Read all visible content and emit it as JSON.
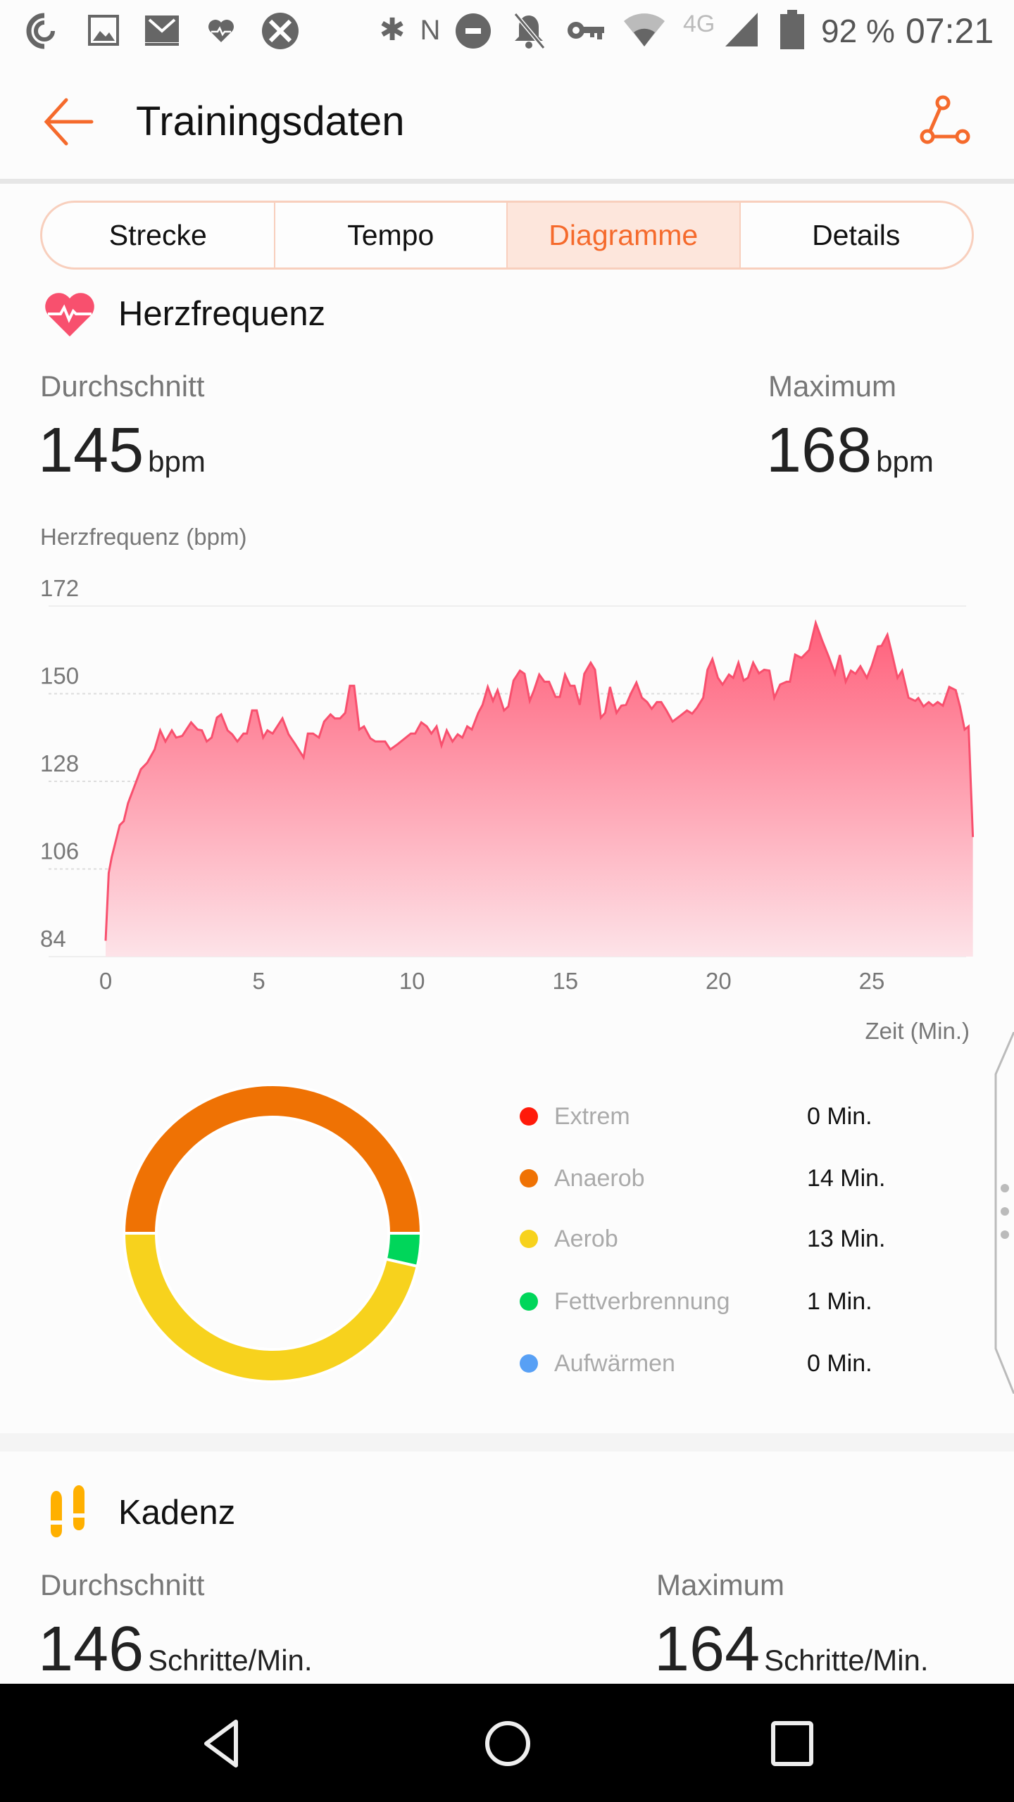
{
  "status_bar": {
    "left_icons": [
      "sync-icon",
      "image-icon",
      "mail-icon",
      "heart-rate-icon",
      "no-tools-icon"
    ],
    "right_icons": [
      "bluetooth-icon",
      "nfc-icon",
      "do-not-disturb-icon",
      "mute-bell-icon",
      "vpn-key-icon",
      "wifi-icon",
      "4g-icon",
      "signal-icon",
      "battery-icon"
    ],
    "network": "4G",
    "battery": "92 %",
    "time": "07:21"
  },
  "header": {
    "title": "Trainingsdaten",
    "back_icon": "arrow-left-icon",
    "share_icon": "share-icon"
  },
  "tabs": [
    {
      "label": "Strecke",
      "active": false
    },
    {
      "label": "Tempo",
      "active": false
    },
    {
      "label": "Diagramme",
      "active": true
    },
    {
      "label": "Details",
      "active": false
    }
  ],
  "heart_rate": {
    "title": "Herzfrequenz",
    "avg_label": "Durchschnitt",
    "avg_value": "145",
    "max_label": "Maximum",
    "max_value": "168",
    "unit": "bpm"
  },
  "chart_data": {
    "type": "area",
    "ylabel": "Herzfrequenz (bpm)",
    "xlabel": "Zeit (Min.)",
    "ylim": [
      84,
      172
    ],
    "yticks": [
      "172",
      "150",
      "128",
      "106",
      "84"
    ],
    "xlim": [
      0,
      28.3
    ],
    "xticks": [
      "0",
      "5",
      "10",
      "15",
      "20",
      "25"
    ],
    "grid": true,
    "colors": {
      "line": "#f8506e",
      "fill_top": "#ff5f7a",
      "fill_bottom": "#fde3e8"
    },
    "points": [
      [
        0,
        88
      ],
      [
        0.1,
        105
      ],
      [
        0.2,
        109
      ],
      [
        0.46,
        117
      ],
      [
        0.59,
        118
      ],
      [
        0.73,
        122.5
      ],
      [
        1.15,
        131
      ],
      [
        1.36,
        132.7
      ],
      [
        1.6,
        136
      ],
      [
        1.78,
        140.8
      ],
      [
        1.95,
        138
      ],
      [
        2.16,
        140.8
      ],
      [
        2.3,
        139
      ],
      [
        2.5,
        139.4
      ],
      [
        2.79,
        142.8
      ],
      [
        3.0,
        141
      ],
      [
        3.14,
        140.8
      ],
      [
        3.3,
        138
      ],
      [
        3.46,
        139
      ],
      [
        3.63,
        144
      ],
      [
        3.77,
        144.8
      ],
      [
        3.98,
        140.8
      ],
      [
        4.13,
        139.8
      ],
      [
        4.3,
        138
      ],
      [
        4.5,
        140
      ],
      [
        4.61,
        140
      ],
      [
        4.78,
        145.8
      ],
      [
        4.93,
        145.8
      ],
      [
        5.14,
        139
      ],
      [
        5.28,
        140.8
      ],
      [
        5.45,
        140
      ],
      [
        5.77,
        143.8
      ],
      [
        5.97,
        139.8
      ],
      [
        6.18,
        137.4
      ],
      [
        6.46,
        134
      ],
      [
        6.6,
        140
      ],
      [
        6.77,
        140
      ],
      [
        6.96,
        139
      ],
      [
        7.13,
        143
      ],
      [
        7.34,
        144.8
      ],
      [
        7.48,
        143.8
      ],
      [
        7.65,
        143.8
      ],
      [
        7.82,
        145.2
      ],
      [
        7.97,
        152
      ],
      [
        8.11,
        152
      ],
      [
        8.28,
        141
      ],
      [
        8.43,
        141.8
      ],
      [
        8.64,
        138.8
      ],
      [
        8.8,
        138
      ],
      [
        9.12,
        138
      ],
      [
        9.29,
        136
      ],
      [
        9.54,
        137.4
      ],
      [
        9.96,
        140
      ],
      [
        10.1,
        140
      ],
      [
        10.3,
        142.8
      ],
      [
        10.48,
        141.8
      ],
      [
        10.63,
        140
      ],
      [
        10.8,
        141.8
      ],
      [
        10.96,
        137
      ],
      [
        11.13,
        140.8
      ],
      [
        11.32,
        138
      ],
      [
        11.49,
        139.8
      ],
      [
        11.64,
        139
      ],
      [
        11.8,
        141.8
      ],
      [
        11.95,
        141
      ],
      [
        12.16,
        145.2
      ],
      [
        12.3,
        147.2
      ],
      [
        12.47,
        151.7
      ],
      [
        12.64,
        148.2
      ],
      [
        12.79,
        150.9
      ],
      [
        13.0,
        145.8
      ],
      [
        13.14,
        146.8
      ],
      [
        13.31,
        153.3
      ],
      [
        13.52,
        155.8
      ],
      [
        13.67,
        155
      ],
      [
        13.84,
        148.2
      ],
      [
        13.98,
        150.9
      ],
      [
        14.15,
        154.8
      ],
      [
        14.32,
        153
      ],
      [
        14.47,
        153
      ],
      [
        14.68,
        149.2
      ],
      [
        14.82,
        149.2
      ],
      [
        14.99,
        154.8
      ],
      [
        15.16,
        152
      ],
      [
        15.3,
        152
      ],
      [
        15.47,
        147.2
      ],
      [
        15.62,
        155
      ],
      [
        15.83,
        157.8
      ],
      [
        15.97,
        156
      ],
      [
        16.16,
        144
      ],
      [
        16.3,
        145.2
      ],
      [
        16.46,
        151.7
      ],
      [
        16.67,
        145.2
      ],
      [
        16.83,
        147
      ],
      [
        16.98,
        147.2
      ],
      [
        17.15,
        150.2
      ],
      [
        17.32,
        152.8
      ],
      [
        17.5,
        149
      ],
      [
        17.67,
        147.9
      ],
      [
        17.82,
        146.2
      ],
      [
        17.99,
        147.9
      ],
      [
        18.13,
        147.9
      ],
      [
        18.3,
        145.8
      ],
      [
        18.5,
        143
      ],
      [
        18.76,
        144.5
      ],
      [
        18.97,
        145.8
      ],
      [
        19.14,
        145
      ],
      [
        19.3,
        146.5
      ],
      [
        19.5,
        149
      ],
      [
        19.64,
        156
      ],
      [
        19.8,
        158.7
      ],
      [
        19.98,
        154
      ],
      [
        20.13,
        152.3
      ],
      [
        20.34,
        154.8
      ],
      [
        20.48,
        154
      ],
      [
        20.65,
        157.8
      ],
      [
        20.82,
        153.3
      ],
      [
        20.96,
        154
      ],
      [
        21.13,
        157.8
      ],
      [
        21.32,
        155.1
      ],
      [
        21.49,
        156
      ],
      [
        21.66,
        155.8
      ],
      [
        21.82,
        149
      ],
      [
        22.01,
        152.3
      ],
      [
        22.22,
        153
      ],
      [
        22.33,
        153
      ],
      [
        22.5,
        159.8
      ],
      [
        22.71,
        159
      ],
      [
        22.96,
        161
      ],
      [
        23.17,
        167.8
      ],
      [
        23.38,
        163.4
      ],
      [
        23.59,
        159.4
      ],
      [
        23.8,
        155
      ],
      [
        23.96,
        159.7
      ],
      [
        24.15,
        153
      ],
      [
        24.32,
        155.8
      ],
      [
        24.47,
        155
      ],
      [
        24.63,
        156.9
      ],
      [
        24.84,
        154
      ],
      [
        25.0,
        157
      ],
      [
        25.2,
        161.9
      ],
      [
        25.32,
        162
      ],
      [
        25.51,
        164.8
      ],
      [
        25.68,
        159.4
      ],
      [
        25.84,
        154
      ],
      [
        25.99,
        155.8
      ],
      [
        26.2,
        149
      ],
      [
        26.42,
        148.2
      ],
      [
        26.52,
        148.9
      ],
      [
        26.69,
        146.8
      ],
      [
        26.86,
        147.9
      ],
      [
        27.0,
        147
      ],
      [
        27.15,
        147.9
      ],
      [
        27.32,
        147
      ],
      [
        27.53,
        151.7
      ],
      [
        27.74,
        150.9
      ],
      [
        27.88,
        146.8
      ],
      [
        28.03,
        141
      ],
      [
        28.16,
        141.8
      ],
      [
        28.3,
        114
      ]
    ]
  },
  "zones": {
    "type": "pie",
    "items": [
      {
        "label": "Extrem",
        "value": "0 Min.",
        "minutes": 0,
        "color": "#ff1a0a"
      },
      {
        "label": "Anaerob",
        "value": "14 Min.",
        "minutes": 14,
        "color": "#ef7204"
      },
      {
        "label": "Aerob",
        "value": "13 Min.",
        "minutes": 13,
        "color": "#f7d21d"
      },
      {
        "label": "Fettverbrennung",
        "value": "1 Min.",
        "minutes": 1,
        "color": "#00d65a"
      },
      {
        "label": "Aufwärmen",
        "value": "0 Min.",
        "minutes": 0,
        "color": "#58a0f5"
      }
    ]
  },
  "cadence": {
    "title": "Kadenz",
    "avg_label": "Durchschnitt",
    "avg_value": "146",
    "max_label": "Maximum",
    "max_value": "164",
    "unit": "Schritte/Min."
  },
  "nav_bar": {
    "icons": [
      "back-triangle-icon",
      "home-circle-icon",
      "recents-square-icon"
    ]
  }
}
